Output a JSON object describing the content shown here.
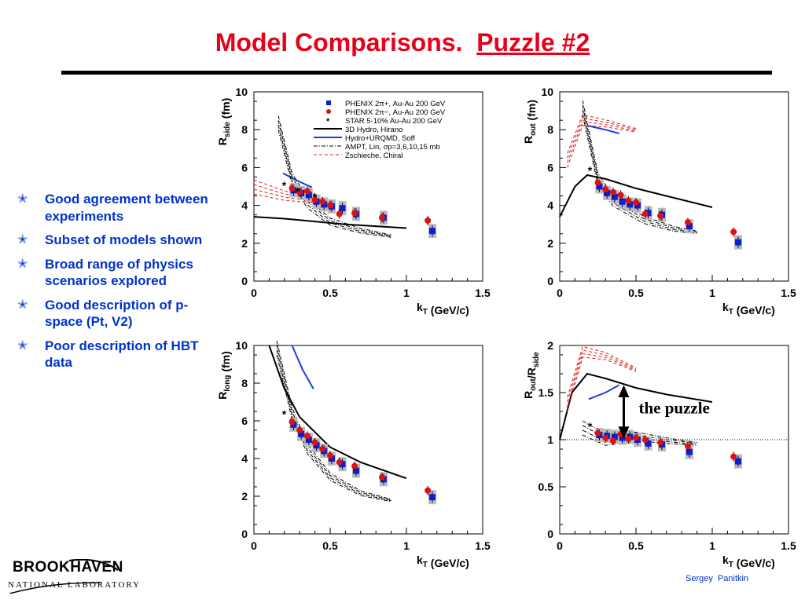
{
  "slide": {
    "title": "Model Comparisons.  ",
    "title_link": "Puzzle #2",
    "bullets": [
      "Good agreement between experiments",
      "Subset of models shown",
      "Broad range of physics scenarios explored",
      "Good description of p-space (Pt, V2)",
      "Poor description of HBT data"
    ],
    "logo_top": "BROOKHAVEN",
    "logo_bottom": "NATIONAL LABORATORY",
    "author": "Sergey  Panitkin",
    "annotation": "the puzzle",
    "colors": {
      "title": "#e8001a",
      "bullets": "#0033cc",
      "phenix_pos": "#0a1fd6",
      "phenix_neg": "#e01010",
      "hydro_urqmd": "#1a3ee0",
      "zschieche": "#e02020"
    }
  },
  "chart_data": [
    {
      "type": "scatter",
      "panel": "top-left",
      "xlabel": "k_T (GeV/c)",
      "ylabel": "R_side (fm)",
      "xlim": [
        0,
        1.5
      ],
      "ylim": [
        0,
        10
      ],
      "xticks": [
        "0",
        "0.5",
        "1",
        "1.5"
      ],
      "yticks": [
        "0",
        "2",
        "4",
        "6",
        "8",
        "10"
      ],
      "legend_position": "top-right",
      "legend": [
        "PHENIX 2π+, Au-Au 200 GeV",
        "PHENIX 2π−, Au-Au 200 GeV",
        "STAR 5-10% Au-Au 200 GeV",
        "3D Hydro, Hirano",
        "Hydro+URQMD, Soff",
        "AMPT, Lin, σp=3,6,10,15 mb",
        "Zschieche, Chiral"
      ],
      "series": [
        {
          "name": "PHENIX 2π+, Au-Au 200 GeV",
          "x": [
            0.26,
            0.31,
            0.36,
            0.41,
            0.46,
            0.51,
            0.58,
            0.67,
            0.85,
            1.17
          ],
          "y": [
            4.8,
            4.65,
            4.55,
            4.2,
            4.05,
            3.95,
            3.85,
            3.55,
            3.35,
            2.65
          ]
        },
        {
          "name": "PHENIX 2π−, Au-Au 200 GeV",
          "x": [
            0.25,
            0.3,
            0.35,
            0.4,
            0.45,
            0.5,
            0.56,
            0.66,
            0.84,
            1.14
          ],
          "y": [
            4.9,
            4.7,
            4.75,
            4.3,
            4.2,
            4.0,
            3.55,
            3.6,
            3.35,
            3.2
          ]
        },
        {
          "name": "STAR 5-10% Au-Au 200 GeV",
          "x": [
            0.2,
            0.29,
            0.4
          ],
          "y": [
            5.1,
            4.8,
            4.5
          ]
        },
        {
          "name": "3D Hydro, Hirano",
          "x": [
            0.0,
            0.2,
            0.4,
            0.6,
            0.8,
            1.0
          ],
          "y": [
            3.4,
            3.3,
            3.15,
            3.0,
            2.9,
            2.8
          ]
        },
        {
          "name": "Hydro+URQMD, Soff",
          "x": [
            0.19,
            0.3,
            0.38
          ],
          "y": [
            5.7,
            5.25,
            4.95
          ]
        },
        {
          "name": "AMPT, Lin, σp=3,6,10,15 mb",
          "x": [
            0.16,
            0.25,
            0.35,
            0.5,
            0.7,
            0.9
          ],
          "y": [
            8.5,
            5.5,
            4.2,
            3.2,
            2.7,
            2.4
          ]
        },
        {
          "name": "Zschieche, Chiral",
          "x": [
            0.0,
            0.2,
            0.4
          ],
          "y": [
            5.1,
            4.6,
            4.3
          ]
        }
      ]
    },
    {
      "type": "scatter",
      "panel": "top-right",
      "xlabel": "k_T (GeV/c)",
      "ylabel": "R_out (fm)",
      "xlim": [
        0,
        1.5
      ],
      "ylim": [
        0,
        10
      ],
      "xticks": [
        "0",
        "0.5",
        "1",
        "1.5"
      ],
      "yticks": [
        "0",
        "2",
        "4",
        "6",
        "8",
        "10"
      ],
      "series": [
        {
          "name": "PHENIX 2π+, Au-Au 200 GeV",
          "x": [
            0.26,
            0.31,
            0.36,
            0.41,
            0.46,
            0.51,
            0.58,
            0.67,
            0.85,
            1.17
          ],
          "y": [
            5.0,
            4.65,
            4.45,
            4.2,
            4.05,
            4.0,
            3.6,
            3.5,
            2.9,
            2.05
          ]
        },
        {
          "name": "PHENIX 2π−, Au-Au 200 GeV",
          "x": [
            0.25,
            0.3,
            0.35,
            0.4,
            0.45,
            0.5,
            0.56,
            0.66,
            0.84,
            1.14
          ],
          "y": [
            5.2,
            4.85,
            4.7,
            4.55,
            4.25,
            4.15,
            3.55,
            3.45,
            3.1,
            2.6
          ]
        },
        {
          "name": "STAR 5-10% Au-Au 200 GeV",
          "x": [
            0.2
          ],
          "y": [
            5.9
          ]
        },
        {
          "name": "3D Hydro, Hirano",
          "x": [
            0.0,
            0.1,
            0.18,
            0.3,
            0.5,
            0.7,
            1.0
          ],
          "y": [
            3.4,
            5.0,
            5.6,
            5.4,
            4.9,
            4.5,
            3.9
          ]
        },
        {
          "name": "Hydro+URQMD, Soff",
          "x": [
            0.19,
            0.3,
            0.39
          ],
          "y": [
            8.2,
            8.0,
            7.8
          ]
        },
        {
          "name": "AMPT, Lin, σp=3,6,10,15 mb",
          "x": [
            0.15,
            0.25,
            0.35,
            0.55,
            0.75,
            0.9
          ],
          "y": [
            9.3,
            5.5,
            4.3,
            3.3,
            2.8,
            2.6
          ]
        },
        {
          "name": "Zschieche, Chiral",
          "x": [
            0.05,
            0.15,
            0.3,
            0.5
          ],
          "y": [
            6.5,
            8.6,
            8.4,
            8.0
          ]
        }
      ]
    },
    {
      "type": "scatter",
      "panel": "bottom-left",
      "xlabel": "k_T (GeV/c)",
      "ylabel": "R_long (fm)",
      "xlim": [
        0,
        1.5
      ],
      "ylim": [
        0,
        10
      ],
      "xticks": [
        "0",
        "0.5",
        "1",
        "1.5"
      ],
      "yticks": [
        "0",
        "2",
        "4",
        "6",
        "8",
        "10"
      ],
      "series": [
        {
          "name": "PHENIX 2π+, Au-Au 200 GeV",
          "x": [
            0.26,
            0.31,
            0.36,
            0.41,
            0.46,
            0.51,
            0.58,
            0.67,
            0.85,
            1.17
          ],
          "y": [
            5.8,
            5.3,
            5.0,
            4.7,
            4.4,
            4.0,
            3.7,
            3.35,
            2.9,
            1.95
          ]
        },
        {
          "name": "PHENIX 2π−, Au-Au 200 GeV",
          "x": [
            0.25,
            0.3,
            0.35,
            0.4,
            0.45,
            0.5,
            0.56,
            0.66,
            0.84,
            1.14
          ],
          "y": [
            5.95,
            5.5,
            5.2,
            4.85,
            4.5,
            4.15,
            3.8,
            3.6,
            3.0,
            2.3
          ]
        },
        {
          "name": "STAR 5-10% Au-Au 200 GeV",
          "x": [
            0.2
          ],
          "y": [
            6.4
          ]
        },
        {
          "name": "3D Hydro, Hirano",
          "x": [
            0.1,
            0.2,
            0.3,
            0.5,
            0.7,
            1.0
          ],
          "y": [
            10.0,
            7.7,
            6.2,
            4.6,
            3.8,
            2.95
          ]
        },
        {
          "name": "Hydro+URQMD, Soff",
          "x": [
            0.25,
            0.32,
            0.39
          ],
          "y": [
            10.0,
            8.7,
            7.7
          ]
        },
        {
          "name": "AMPT, Lin, σp=3,6,10,15 mb",
          "x": [
            0.15,
            0.25,
            0.35,
            0.5,
            0.7,
            0.9
          ],
          "y": [
            10.0,
            6.5,
            4.6,
            3.1,
            2.2,
            1.8
          ]
        }
      ]
    },
    {
      "type": "scatter",
      "panel": "bottom-right",
      "xlabel": "k_T (GeV/c)",
      "ylabel": "R_out/R_side",
      "xlim": [
        0,
        1.5
      ],
      "ylim": [
        0,
        2
      ],
      "xticks": [
        "0",
        "0.5",
        "1",
        "1.5"
      ],
      "yticks": [
        "0",
        "0.5",
        "1",
        "1.5",
        "2"
      ],
      "series": [
        {
          "name": "PHENIX 2π+, Au-Au 200 GeV",
          "x": [
            0.26,
            0.31,
            0.36,
            0.41,
            0.46,
            0.51,
            0.58,
            0.67,
            0.85,
            1.17
          ],
          "y": [
            1.05,
            1.04,
            1.03,
            1.02,
            1.03,
            1.0,
            0.96,
            0.95,
            0.87,
            0.77
          ]
        },
        {
          "name": "PHENIX 2π−, Au-Au 200 GeV",
          "x": [
            0.25,
            0.3,
            0.35,
            0.4,
            0.45,
            0.5,
            0.56,
            0.66,
            0.84,
            1.14
          ],
          "y": [
            1.07,
            1.02,
            0.99,
            1.06,
            1.01,
            1.02,
            1.0,
            0.97,
            0.93,
            0.82
          ]
        },
        {
          "name": "STAR 5-10% Au-Au 200 GeV",
          "x": [
            0.2
          ],
          "y": [
            1.15
          ]
        },
        {
          "name": "3D Hydro, Hirano",
          "x": [
            0.0,
            0.08,
            0.18,
            0.3,
            0.5,
            0.7,
            1.0
          ],
          "y": [
            1.0,
            1.5,
            1.7,
            1.65,
            1.55,
            1.48,
            1.4
          ]
        },
        {
          "name": "Hydro+URQMD, Soff",
          "x": [
            0.19,
            0.3,
            0.39
          ],
          "y": [
            1.43,
            1.5,
            1.58
          ]
        },
        {
          "name": "AMPT, Lin, σp=3,6,10,15 mb",
          "x": [
            0.15,
            0.3,
            0.5,
            0.7,
            0.9
          ],
          "y": [
            1.15,
            1.02,
            1.05,
            1.0,
            0.96
          ]
        },
        {
          "name": "Zschieche, Chiral",
          "x": [
            0.05,
            0.15,
            0.3,
            0.5
          ],
          "y": [
            1.4,
            1.95,
            1.9,
            1.75
          ]
        }
      ],
      "reference_line_y": 1
    }
  ]
}
